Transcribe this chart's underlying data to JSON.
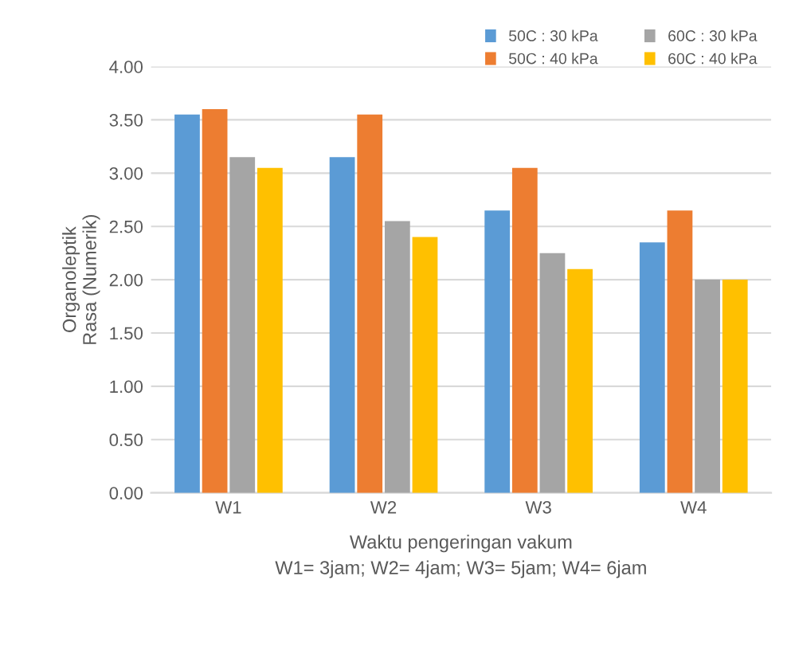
{
  "chart_data": {
    "type": "bar",
    "categories": [
      "W1",
      "W2",
      "W3",
      "W4"
    ],
    "series": [
      {
        "name": "50C : 30 kPa",
        "color": "#5b9bd5",
        "values": [
          3.55,
          3.15,
          2.65,
          2.35
        ]
      },
      {
        "name": "50C : 40 kPa",
        "color": "#ed7d31",
        "values": [
          3.6,
          3.55,
          3.05,
          2.65
        ]
      },
      {
        "name": "60C : 30 kPa",
        "color": "#a5a5a5",
        "values": [
          3.15,
          2.55,
          2.25,
          2.0
        ]
      },
      {
        "name": "60C : 40 kPa",
        "color": "#ffc000",
        "values": [
          3.05,
          2.4,
          2.1,
          2.0
        ]
      }
    ],
    "xlabel": "Waktu pengeringan vakum\nW1= 3jam; W2= 4jam; W3= 5jam; W4= 6jam",
    "ylabel": "Organoleptik\nRasa (Numerik)",
    "ylim": [
      0,
      4
    ],
    "yticks": [
      {
        "value": 0,
        "label": "0.00"
      },
      {
        "value": 0.5,
        "label": "0.50"
      },
      {
        "value": 1,
        "label": "1.00"
      },
      {
        "value": 1.5,
        "label": "1.50"
      },
      {
        "value": 2,
        "label": "2.00"
      },
      {
        "value": 2.5,
        "label": "2.50"
      },
      {
        "value": 3,
        "label": "3.00"
      },
      {
        "value": 3.5,
        "label": "3.50"
      },
      {
        "value": 4,
        "label": "4.00"
      }
    ],
    "grid": "y",
    "legend": "top right"
  }
}
